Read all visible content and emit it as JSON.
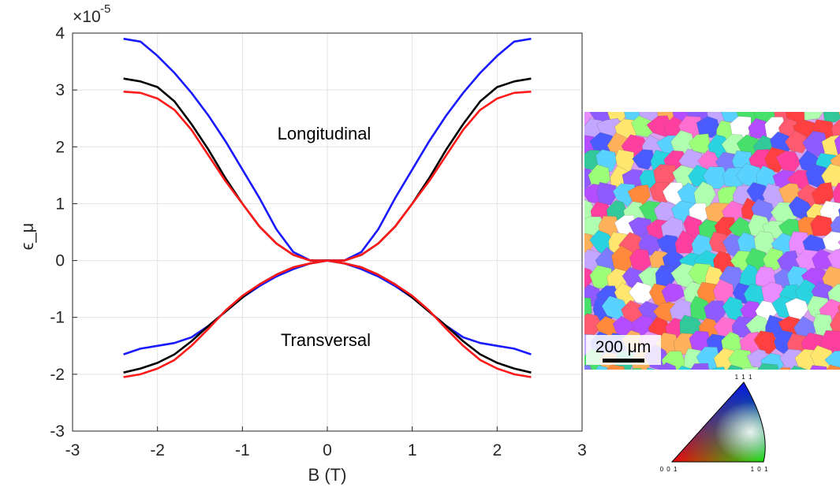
{
  "chart_data": {
    "type": "line",
    "xlabel": "B (T)",
    "ylabel": "ϵ_μ",
    "y_exponent_label": "×10",
    "y_exponent": "-5",
    "xlim": [
      -3,
      3
    ],
    "ylim": [
      -3,
      4
    ],
    "x_ticks": [
      "-3",
      "-2",
      "-1",
      "0",
      "1",
      "2",
      "3"
    ],
    "y_ticks": [
      "-3",
      "-2",
      "-1",
      "0",
      "1",
      "2",
      "3",
      "4"
    ],
    "grid": true,
    "annotations": {
      "upper": "Longitudinal",
      "lower": "Transversal"
    },
    "x": [
      0,
      0.2,
      0.4,
      0.6,
      0.8,
      1.0,
      1.2,
      1.4,
      1.6,
      1.8,
      2.0,
      2.2,
      2.4
    ],
    "series": [
      {
        "group": "longitudinal",
        "color": "#1a1aff",
        "values": [
          0,
          0.0,
          0.15,
          0.55,
          1.1,
          1.6,
          2.1,
          2.55,
          2.95,
          3.3,
          3.6,
          3.85,
          3.9
        ]
      },
      {
        "group": "longitudinal",
        "color": "#000000",
        "values": [
          0,
          0.0,
          0.1,
          0.3,
          0.6,
          1.0,
          1.45,
          1.95,
          2.4,
          2.8,
          3.05,
          3.15,
          3.2
        ]
      },
      {
        "group": "longitudinal",
        "color": "#ff1a1a",
        "values": [
          0,
          0.0,
          0.1,
          0.3,
          0.6,
          1.0,
          1.4,
          1.85,
          2.3,
          2.65,
          2.85,
          2.95,
          2.97
        ]
      },
      {
        "group": "transversal",
        "color": "#1a1aff",
        "values": [
          0,
          -0.05,
          -0.15,
          -0.28,
          -0.45,
          -0.65,
          -0.9,
          -1.15,
          -1.35,
          -1.45,
          -1.5,
          -1.55,
          -1.65
        ]
      },
      {
        "group": "transversal",
        "color": "#000000",
        "values": [
          0,
          -0.05,
          -0.12,
          -0.25,
          -0.42,
          -0.65,
          -0.9,
          -1.15,
          -1.42,
          -1.65,
          -1.8,
          -1.9,
          -1.97
        ]
      },
      {
        "group": "transversal",
        "color": "#ff1a1a",
        "values": [
          0,
          -0.05,
          -0.12,
          -0.25,
          -0.42,
          -0.62,
          -0.88,
          -1.2,
          -1.5,
          -1.75,
          -1.9,
          -2.0,
          -2.05
        ]
      }
    ]
  },
  "micrograph": {
    "scale_bar_label": "200 μm",
    "ipf_key": {
      "top": "1 1 1",
      "bottom_left": "0 0 1",
      "bottom_right": "1 0 1"
    }
  }
}
